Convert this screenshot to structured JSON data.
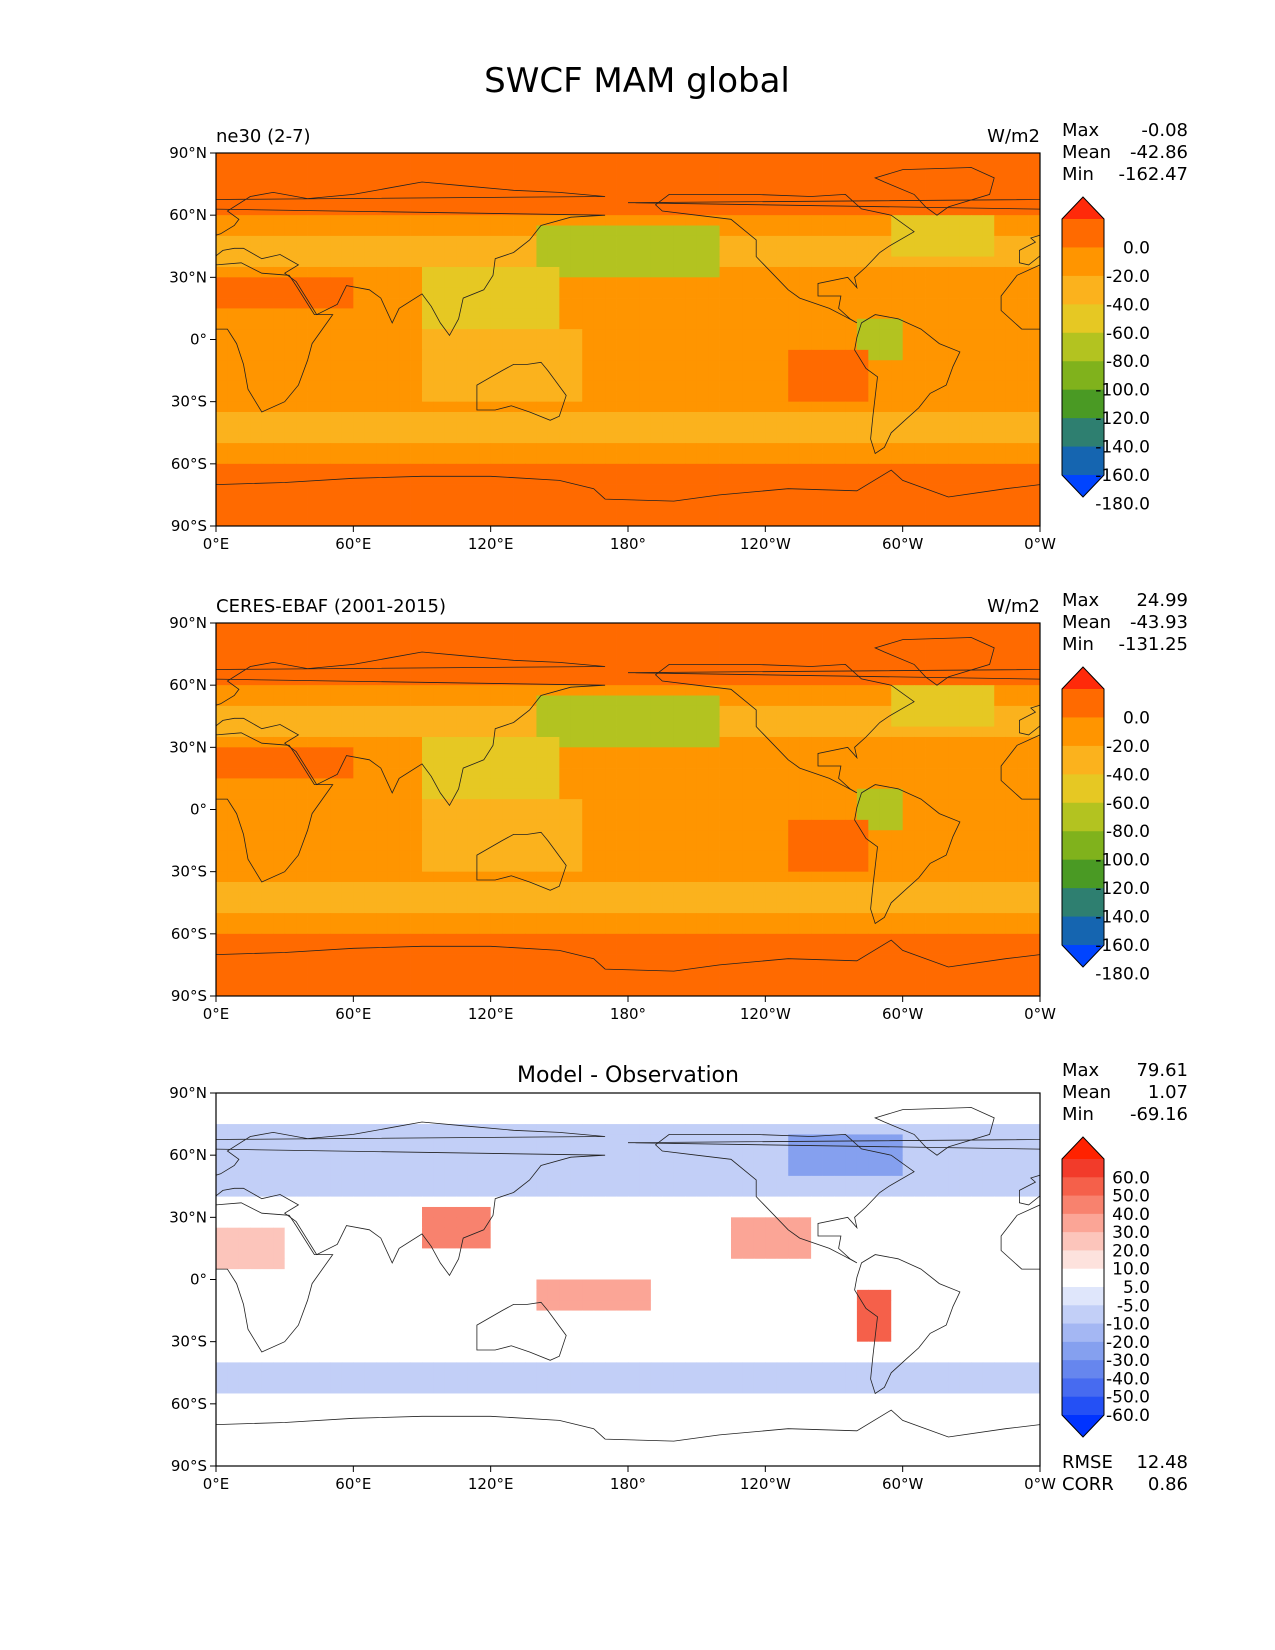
{
  "figure": {
    "title": "SWCF MAM global"
  },
  "chart_data": [
    {
      "type": "heatmap",
      "left_title": "ne30 (2-7)",
      "center_title": "",
      "right_title": "W/m2",
      "stats": [
        {
          "label": "Max",
          "value": "-0.08"
        },
        {
          "label": "Mean",
          "value": "-42.86"
        },
        {
          "label": "Min",
          "value": "-162.47"
        }
      ],
      "extra_stats": [],
      "x_ticks": [
        "0°E",
        "60°E",
        "120°E",
        "180°",
        "120°W",
        "60°W",
        "0°W"
      ],
      "y_ticks": [
        "90°N",
        "60°N",
        "30°N",
        "0°",
        "30°S",
        "60°S",
        "90°S"
      ],
      "colorbar": {
        "labels": [
          "0.0",
          "-20.0",
          "-40.0",
          "-60.0",
          "-80.0",
          "-100.0",
          "-120.0",
          "-140.0",
          "-160.0",
          "-180.0"
        ],
        "colors": [
          "#ff2a0a",
          "#ff6a00",
          "#ff9500",
          "#fbb21d",
          "#e6c823",
          "#b3c320",
          "#80b21c",
          "#4a9a24",
          "#2e7f70",
          "#1565b0",
          "#0044ff"
        ]
      }
    },
    {
      "type": "heatmap",
      "left_title": "CERES-EBAF (2001-2015)",
      "center_title": "",
      "right_title": "W/m2",
      "stats": [
        {
          "label": "Max",
          "value": "24.99"
        },
        {
          "label": "Mean",
          "value": "-43.93"
        },
        {
          "label": "Min",
          "value": "-131.25"
        }
      ],
      "extra_stats": [],
      "x_ticks": [
        "0°E",
        "60°E",
        "120°E",
        "180°",
        "120°W",
        "60°W",
        "0°W"
      ],
      "y_ticks": [
        "90°N",
        "60°N",
        "30°N",
        "0°",
        "30°S",
        "60°S",
        "90°S"
      ],
      "colorbar": {
        "labels": [
          "0.0",
          "-20.0",
          "-40.0",
          "-60.0",
          "-80.0",
          "-100.0",
          "-120.0",
          "-140.0",
          "-160.0",
          "-180.0"
        ],
        "colors": [
          "#ff2a0a",
          "#ff6a00",
          "#ff9500",
          "#fbb21d",
          "#e6c823",
          "#b3c320",
          "#80b21c",
          "#4a9a24",
          "#2e7f70",
          "#1565b0",
          "#0044ff"
        ]
      }
    },
    {
      "type": "heatmap",
      "left_title": "",
      "center_title": "Model - Observation",
      "right_title": "",
      "stats": [
        {
          "label": "Max",
          "value": "79.61"
        },
        {
          "label": "Mean",
          "value": "1.07"
        },
        {
          "label": "Min",
          "value": "-69.16"
        }
      ],
      "extra_stats": [
        {
          "label": "RMSE",
          "value": "12.48"
        },
        {
          "label": "CORR",
          "value": "0.86"
        }
      ],
      "x_ticks": [
        "0°E",
        "60°E",
        "120°E",
        "180°",
        "120°W",
        "60°W",
        "0°W"
      ],
      "y_ticks": [
        "90°N",
        "60°N",
        "30°N",
        "0°",
        "30°S",
        "60°S",
        "90°S"
      ],
      "colorbar": {
        "labels": [
          "60.0",
          "50.0",
          "40.0",
          "30.0",
          "20.0",
          "10.0",
          "5.0",
          "-5.0",
          "-10.0",
          "-20.0",
          "-30.0",
          "-40.0",
          "-50.0",
          "-60.0"
        ],
        "colors": [
          "#ff2200",
          "#f23b2a",
          "#f5604a",
          "#f8826e",
          "#fba596",
          "#fcc5bb",
          "#fde2dd",
          "#ffffff",
          "#dfe6fb",
          "#c2cff7",
          "#a4b7f3",
          "#85a0ef",
          "#6686ee",
          "#476bf0",
          "#2450f5",
          "#0033ff"
        ]
      }
    }
  ]
}
